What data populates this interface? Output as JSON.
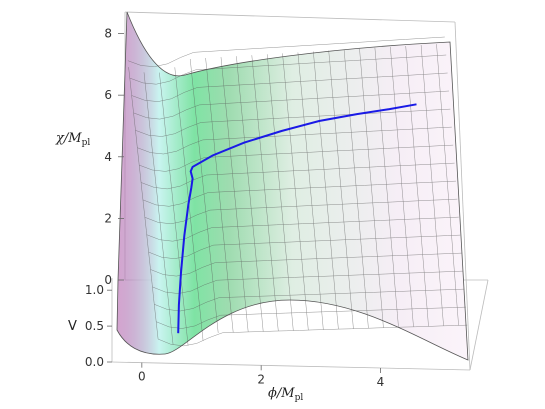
{
  "chart_data": {
    "type": "surface-3d",
    "title": "",
    "xlabel": {
      "base": "ϕ/M",
      "sub": "pl"
    },
    "ylabel": {
      "base": "χ/M",
      "sub": "pl"
    },
    "zlabel": "V",
    "x_ticks": [
      "0",
      "2",
      "4"
    ],
    "y_ticks": [
      "0",
      "2",
      "4",
      "6",
      "8"
    ],
    "z_ticks": [
      "0.0",
      "0.5",
      "1.0"
    ],
    "xlim": [
      -0.5,
      5.5
    ],
    "ylim": [
      0,
      8.7
    ],
    "zlim": [
      0,
      1.1
    ],
    "trajectory": {
      "color": "#1a1ae6",
      "phi": [
        0.05,
        0.12,
        0.22,
        0.35,
        0.48,
        0.56,
        0.6,
        0.58,
        0.62,
        1.0,
        1.6,
        2.3,
        3.0,
        3.7,
        4.3,
        4.8
      ],
      "chi": [
        0.4,
        1.3,
        2.3,
        3.4,
        4.3,
        4.75,
        5.0,
        5.25,
        5.35,
        5.55,
        5.9,
        6.2,
        6.45,
        6.6,
        6.7,
        6.8
      ]
    },
    "surface_colors": {
      "valley": "#5fe08a",
      "cyan": "#a8f4f0",
      "ridge": "#e4a6d6",
      "flat": "#f6eef6"
    }
  }
}
